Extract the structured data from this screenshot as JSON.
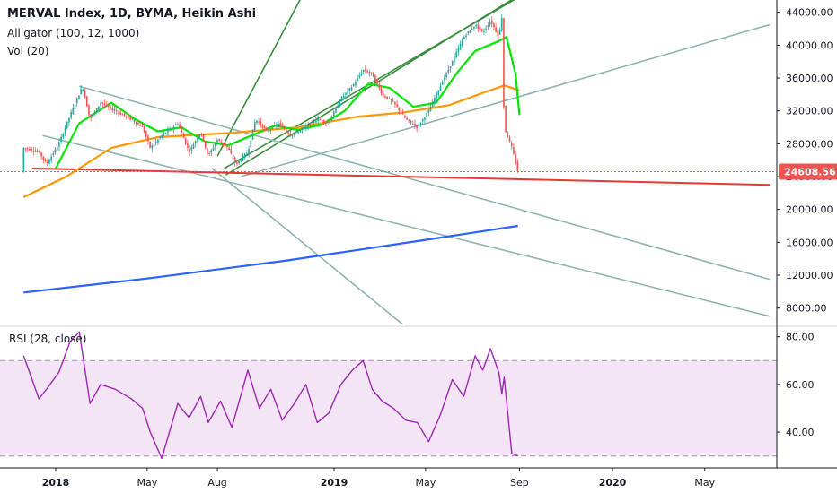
{
  "legend": {
    "symbol": "MERVAL Index, 1D, BYMA, Heikin Ashi",
    "alligator": "Alligator (100, 12, 1000)",
    "volume": "Vol (20)",
    "rsi": "RSI (28, close)"
  },
  "colors": {
    "up": "#26a69a",
    "down": "#ef5350",
    "alligator_lips": "#00e600",
    "alligator_teeth": "#ff9800",
    "alligator_jaw": "#2962ff",
    "fan_green": "#388e3c",
    "trend_gray": "#90b4ae",
    "support_red": "#e53935",
    "rsi_line": "#9c27b0",
    "rsi_band": "#f3e5f5",
    "badge_bg": "#ef5350"
  },
  "chart_data": [
    {
      "type": "candlestick",
      "title": "MERVAL Index, 1D, BYMA, Heikin Ashi",
      "x_ticks": [
        "2018",
        "May",
        "Aug",
        "2019",
        "May",
        "Sep",
        "2020",
        "May"
      ],
      "y_ticks": [
        "44000.00",
        "40000.00",
        "36000.00",
        "32000.00",
        "28000.00",
        "24000.00",
        "20000.00",
        "16000.00",
        "12000.00",
        "8000.00"
      ],
      "ylim": [
        6000,
        45500
      ],
      "last_price": "24608.56",
      "price_path": [
        [
          "2017-11-20",
          27500
        ],
        [
          "2017-12-10",
          27000
        ],
        [
          "2017-12-20",
          25500
        ],
        [
          "2018-01-05",
          28000
        ],
        [
          "2018-01-20",
          31500
        ],
        [
          "2018-02-05",
          35000
        ],
        [
          "2018-02-15",
          31000
        ],
        [
          "2018-03-01",
          33000
        ],
        [
          "2018-03-20",
          32000
        ],
        [
          "2018-04-10",
          31000
        ],
        [
          "2018-04-25",
          30000
        ],
        [
          "2018-05-05",
          27500
        ],
        [
          "2018-05-20",
          29000
        ],
        [
          "2018-06-10",
          30500
        ],
        [
          "2018-06-25",
          27000
        ],
        [
          "2018-07-10",
          29500
        ],
        [
          "2018-07-20",
          26500
        ],
        [
          "2018-08-01",
          28500
        ],
        [
          "2018-08-15",
          27500
        ],
        [
          "2018-08-25",
          25500
        ],
        [
          "2018-09-10",
          27000
        ],
        [
          "2018-09-20",
          31000
        ],
        [
          "2018-10-05",
          29500
        ],
        [
          "2018-10-20",
          30500
        ],
        [
          "2018-11-05",
          29000
        ],
        [
          "2018-11-25",
          30000
        ],
        [
          "2018-12-10",
          31000
        ],
        [
          "2018-12-25",
          30500
        ],
        [
          "2019-01-10",
          33500
        ],
        [
          "2019-01-25",
          35000
        ],
        [
          "2019-02-08",
          37000
        ],
        [
          "2019-02-20",
          36500
        ],
        [
          "2019-03-05",
          34000
        ],
        [
          "2019-03-20",
          33000
        ],
        [
          "2019-04-05",
          31000
        ],
        [
          "2019-04-20",
          30000
        ],
        [
          "2019-05-05",
          32000
        ],
        [
          "2019-05-20",
          35000
        ],
        [
          "2019-06-05",
          38000
        ],
        [
          "2019-06-20",
          41000
        ],
        [
          "2019-07-05",
          42500
        ],
        [
          "2019-07-15",
          41500
        ],
        [
          "2019-07-25",
          43000
        ],
        [
          "2019-08-05",
          41000
        ],
        [
          "2019-08-09",
          43500
        ],
        [
          "2019-08-12",
          30000
        ],
        [
          "2019-08-22",
          27500
        ],
        [
          "2019-08-30",
          24600
        ]
      ],
      "indicators": [
        {
          "name": "Jaw",
          "color": "#2962ff",
          "points": [
            [
              "2017-11-20",
              9900
            ],
            [
              "2018-05-01",
              11600
            ],
            [
              "2018-11-01",
              13800
            ],
            [
              "2019-05-01",
              16300
            ],
            [
              "2019-08-30",
              18000
            ]
          ]
        },
        {
          "name": "Teeth",
          "color": "#ff9800",
          "points": [
            [
              "2017-11-20",
              21500
            ],
            [
              "2018-01-15",
              24000
            ],
            [
              "2018-03-15",
              27500
            ],
            [
              "2018-05-15",
              28800
            ],
            [
              "2018-08-15",
              29300
            ],
            [
              "2018-11-15",
              30000
            ],
            [
              "2019-02-01",
              31300
            ],
            [
              "2019-04-01",
              31800
            ],
            [
              "2019-06-01",
              32700
            ],
            [
              "2019-07-15",
              34200
            ],
            [
              "2019-08-12",
              35100
            ],
            [
              "2019-09-01",
              34500
            ]
          ]
        },
        {
          "name": "Lips",
          "color": "#00e600",
          "points": [
            [
              "2018-01-01",
              25000
            ],
            [
              "2018-02-01",
              30500
            ],
            [
              "2018-03-15",
              33000
            ],
            [
              "2018-04-15",
              31000
            ],
            [
              "2018-05-15",
              29500
            ],
            [
              "2018-06-15",
              30000
            ],
            [
              "2018-07-15",
              28300
            ],
            [
              "2018-08-15",
              27800
            ],
            [
              "2018-09-15",
              29000
            ],
            [
              "2018-10-15",
              30200
            ],
            [
              "2018-11-15",
              29700
            ],
            [
              "2018-12-15",
              30300
            ],
            [
              "2019-01-15",
              32000
            ],
            [
              "2019-02-15",
              35300
            ],
            [
              "2019-03-15",
              34800
            ],
            [
              "2019-04-15",
              32500
            ],
            [
              "2019-05-15",
              33000
            ],
            [
              "2019-06-10",
              36500
            ],
            [
              "2019-07-05",
              39300
            ],
            [
              "2019-08-05",
              40500
            ],
            [
              "2019-08-15",
              41000
            ],
            [
              "2019-08-27",
              36500
            ],
            [
              "2019-09-01",
              31500
            ]
          ]
        }
      ],
      "trend_lines": [
        {
          "style": "fan_green",
          "from": [
            "2018-08-01",
            26500
          ],
          "to": [
            "2018-12-10",
            49500
          ]
        },
        {
          "style": "fan_green",
          "from": [
            "2018-08-10",
            25000
          ],
          "to": [
            "2019-10-10",
            48000
          ]
        },
        {
          "style": "fan_green",
          "from": [
            "2018-08-12",
            24200
          ],
          "to": [
            "2019-10-22",
            49000
          ]
        },
        {
          "style": "trend_gray",
          "from": [
            "2018-09-01",
            24000
          ],
          "to": [
            "2020-07-25",
            42500
          ]
        },
        {
          "style": "trend_gray",
          "from": [
            "2018-02-01",
            35000
          ],
          "to": [
            "2020-07-25",
            11500
          ]
        },
        {
          "style": "trend_gray",
          "from": [
            "2017-12-15",
            29000
          ],
          "to": [
            "2020-07-25",
            7000
          ]
        },
        {
          "style": "trend_gray",
          "from": [
            "2018-07-25",
            25000
          ],
          "to": [
            "2019-04-01",
            6000
          ]
        },
        {
          "style": "support_red",
          "from": [
            "2017-12-01",
            25000
          ],
          "to": [
            "2020-07-25",
            23000
          ]
        }
      ]
    },
    {
      "type": "line",
      "title": "RSI (28, close)",
      "y_ticks": [
        "80.00",
        "60.00",
        "40.00"
      ],
      "ylim": [
        25,
        84
      ],
      "bands": [
        30,
        70
      ],
      "x": [
        "2017-11-20",
        "2017-12-10",
        "2017-12-20",
        "2018-01-05",
        "2018-01-20",
        "2018-02-01",
        "2018-02-15",
        "2018-03-01",
        "2018-03-20",
        "2018-04-10",
        "2018-04-25",
        "2018-05-05",
        "2018-05-20",
        "2018-06-10",
        "2018-06-25",
        "2018-07-10",
        "2018-07-20",
        "2018-08-05",
        "2018-08-20",
        "2018-09-10",
        "2018-09-25",
        "2018-10-10",
        "2018-10-25",
        "2018-11-10",
        "2018-11-25",
        "2018-12-10",
        "2018-12-25",
        "2019-01-10",
        "2019-01-25",
        "2019-02-08",
        "2019-02-20",
        "2019-03-05",
        "2019-03-20",
        "2019-04-05",
        "2019-04-20",
        "2019-05-05",
        "2019-05-20",
        "2019-06-05",
        "2019-06-20",
        "2019-07-05",
        "2019-07-15",
        "2019-07-25",
        "2019-08-05",
        "2019-08-09",
        "2019-08-12",
        "2019-08-22",
        "2019-08-30"
      ],
      "values": [
        72,
        54,
        58,
        65,
        78,
        82,
        52,
        60,
        58,
        54,
        50,
        40,
        29,
        52,
        46,
        55,
        44,
        53,
        42,
        66,
        50,
        58,
        45,
        52,
        60,
        44,
        48,
        60,
        66,
        70,
        58,
        53,
        50,
        45,
        44,
        36,
        47,
        62,
        55,
        72,
        66,
        75,
        65,
        56,
        63,
        31,
        30
      ]
    }
  ]
}
